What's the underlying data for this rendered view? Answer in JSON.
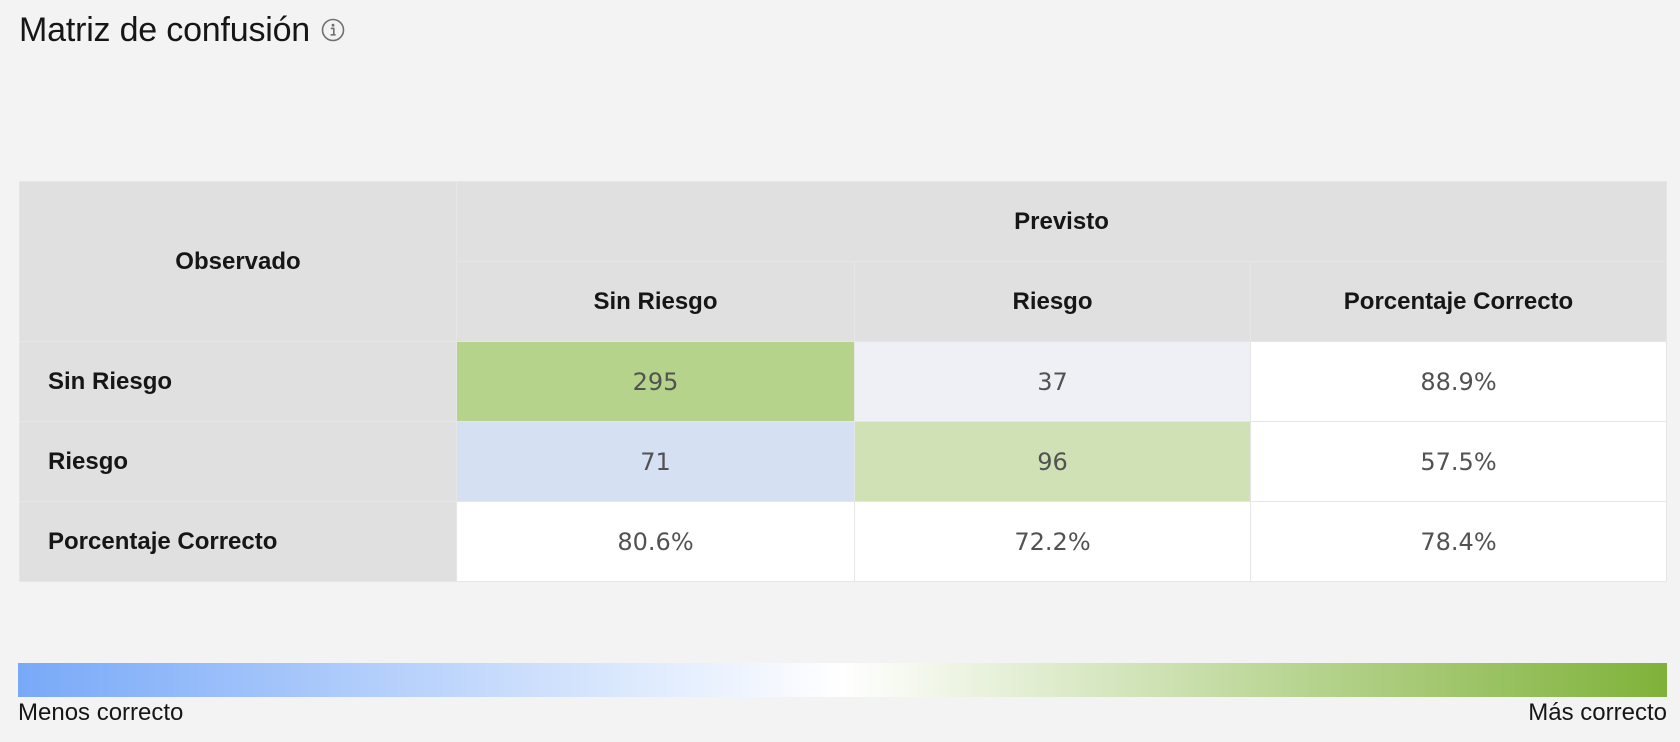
{
  "title": "Matriz de confusión",
  "colors": {
    "header_bg": "#e0e0e0",
    "cell_bg": "#ffffff",
    "gradient_low": "#78a9f8",
    "gradient_mid": "#ffffff",
    "gradient_high": "#7fb239"
  },
  "table": {
    "corner_label": "Observado",
    "predicted_label": "Previsto",
    "columns": [
      "Sin Riesgo",
      "Riesgo",
      "Porcentaje Correcto"
    ],
    "rows": [
      {
        "label": "Sin Riesgo",
        "cells": [
          {
            "value": "295",
            "bg": "#b6d38b"
          },
          {
            "value": "37",
            "bg": "#eef0f6"
          },
          {
            "value": "88.9%",
            "bg": "#ffffff"
          }
        ]
      },
      {
        "label": "Riesgo",
        "cells": [
          {
            "value": "71",
            "bg": "#d5e1f3"
          },
          {
            "value": "96",
            "bg": "#d0e1b5"
          },
          {
            "value": "57.5%",
            "bg": "#ffffff"
          }
        ]
      },
      {
        "label": "Porcentaje Correcto",
        "cells": [
          {
            "value": "80.6%",
            "bg": "#ffffff"
          },
          {
            "value": "72.2%",
            "bg": "#ffffff"
          },
          {
            "value": "78.4%",
            "bg": "#ffffff"
          }
        ]
      }
    ]
  },
  "legend": {
    "low_label": "Menos correcto",
    "high_label": "Más correcto"
  }
}
